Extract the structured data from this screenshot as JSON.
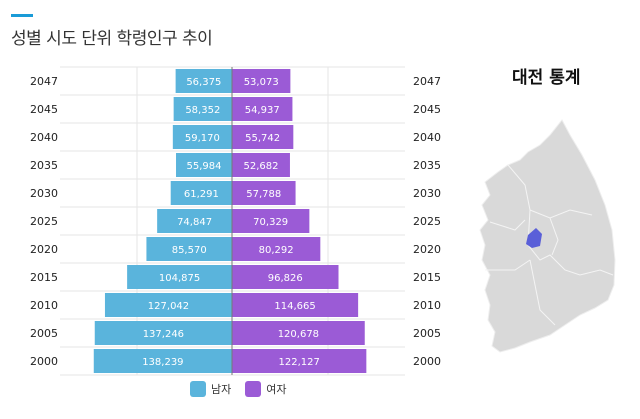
{
  "title": "성별 시도 단위 학령인구 추이",
  "map_title": "대전 통계",
  "colors": {
    "male": "#5ab4dc",
    "female": "#9b5bd6",
    "accent": "#1a9bd7",
    "map_land": "#d9d9d9",
    "map_highlight": "#5a5fd8"
  },
  "chart_data": {
    "type": "bar",
    "orientation": "horizontal-diverging",
    "categories": [
      "2047",
      "2045",
      "2040",
      "2035",
      "2030",
      "2025",
      "2020",
      "2015",
      "2010",
      "2005",
      "2000"
    ],
    "series": [
      {
        "name": "남자",
        "values": [
          56375,
          58352,
          59170,
          55984,
          61291,
          74847,
          85570,
          104875,
          127042,
          137246,
          138239
        ],
        "labels": [
          "56,375",
          "58,352",
          "59,170",
          "55,984",
          "61,291",
          "74,847",
          "85,570",
          "104,875",
          "127,042",
          "137,246",
          "138,239"
        ]
      },
      {
        "name": "여자",
        "values": [
          53073,
          54937,
          55742,
          52682,
          57788,
          70329,
          80292,
          96826,
          114665,
          120678,
          122127
        ],
        "labels": [
          "53,073",
          "54,937",
          "55,742",
          "52,682",
          "57,788",
          "70,329",
          "80,292",
          "96,826",
          "114,665",
          "120,678",
          "122,127"
        ]
      }
    ],
    "legend": "bottom",
    "grid": true
  },
  "map": {
    "region": "대전",
    "icon": "south-korea-map"
  }
}
